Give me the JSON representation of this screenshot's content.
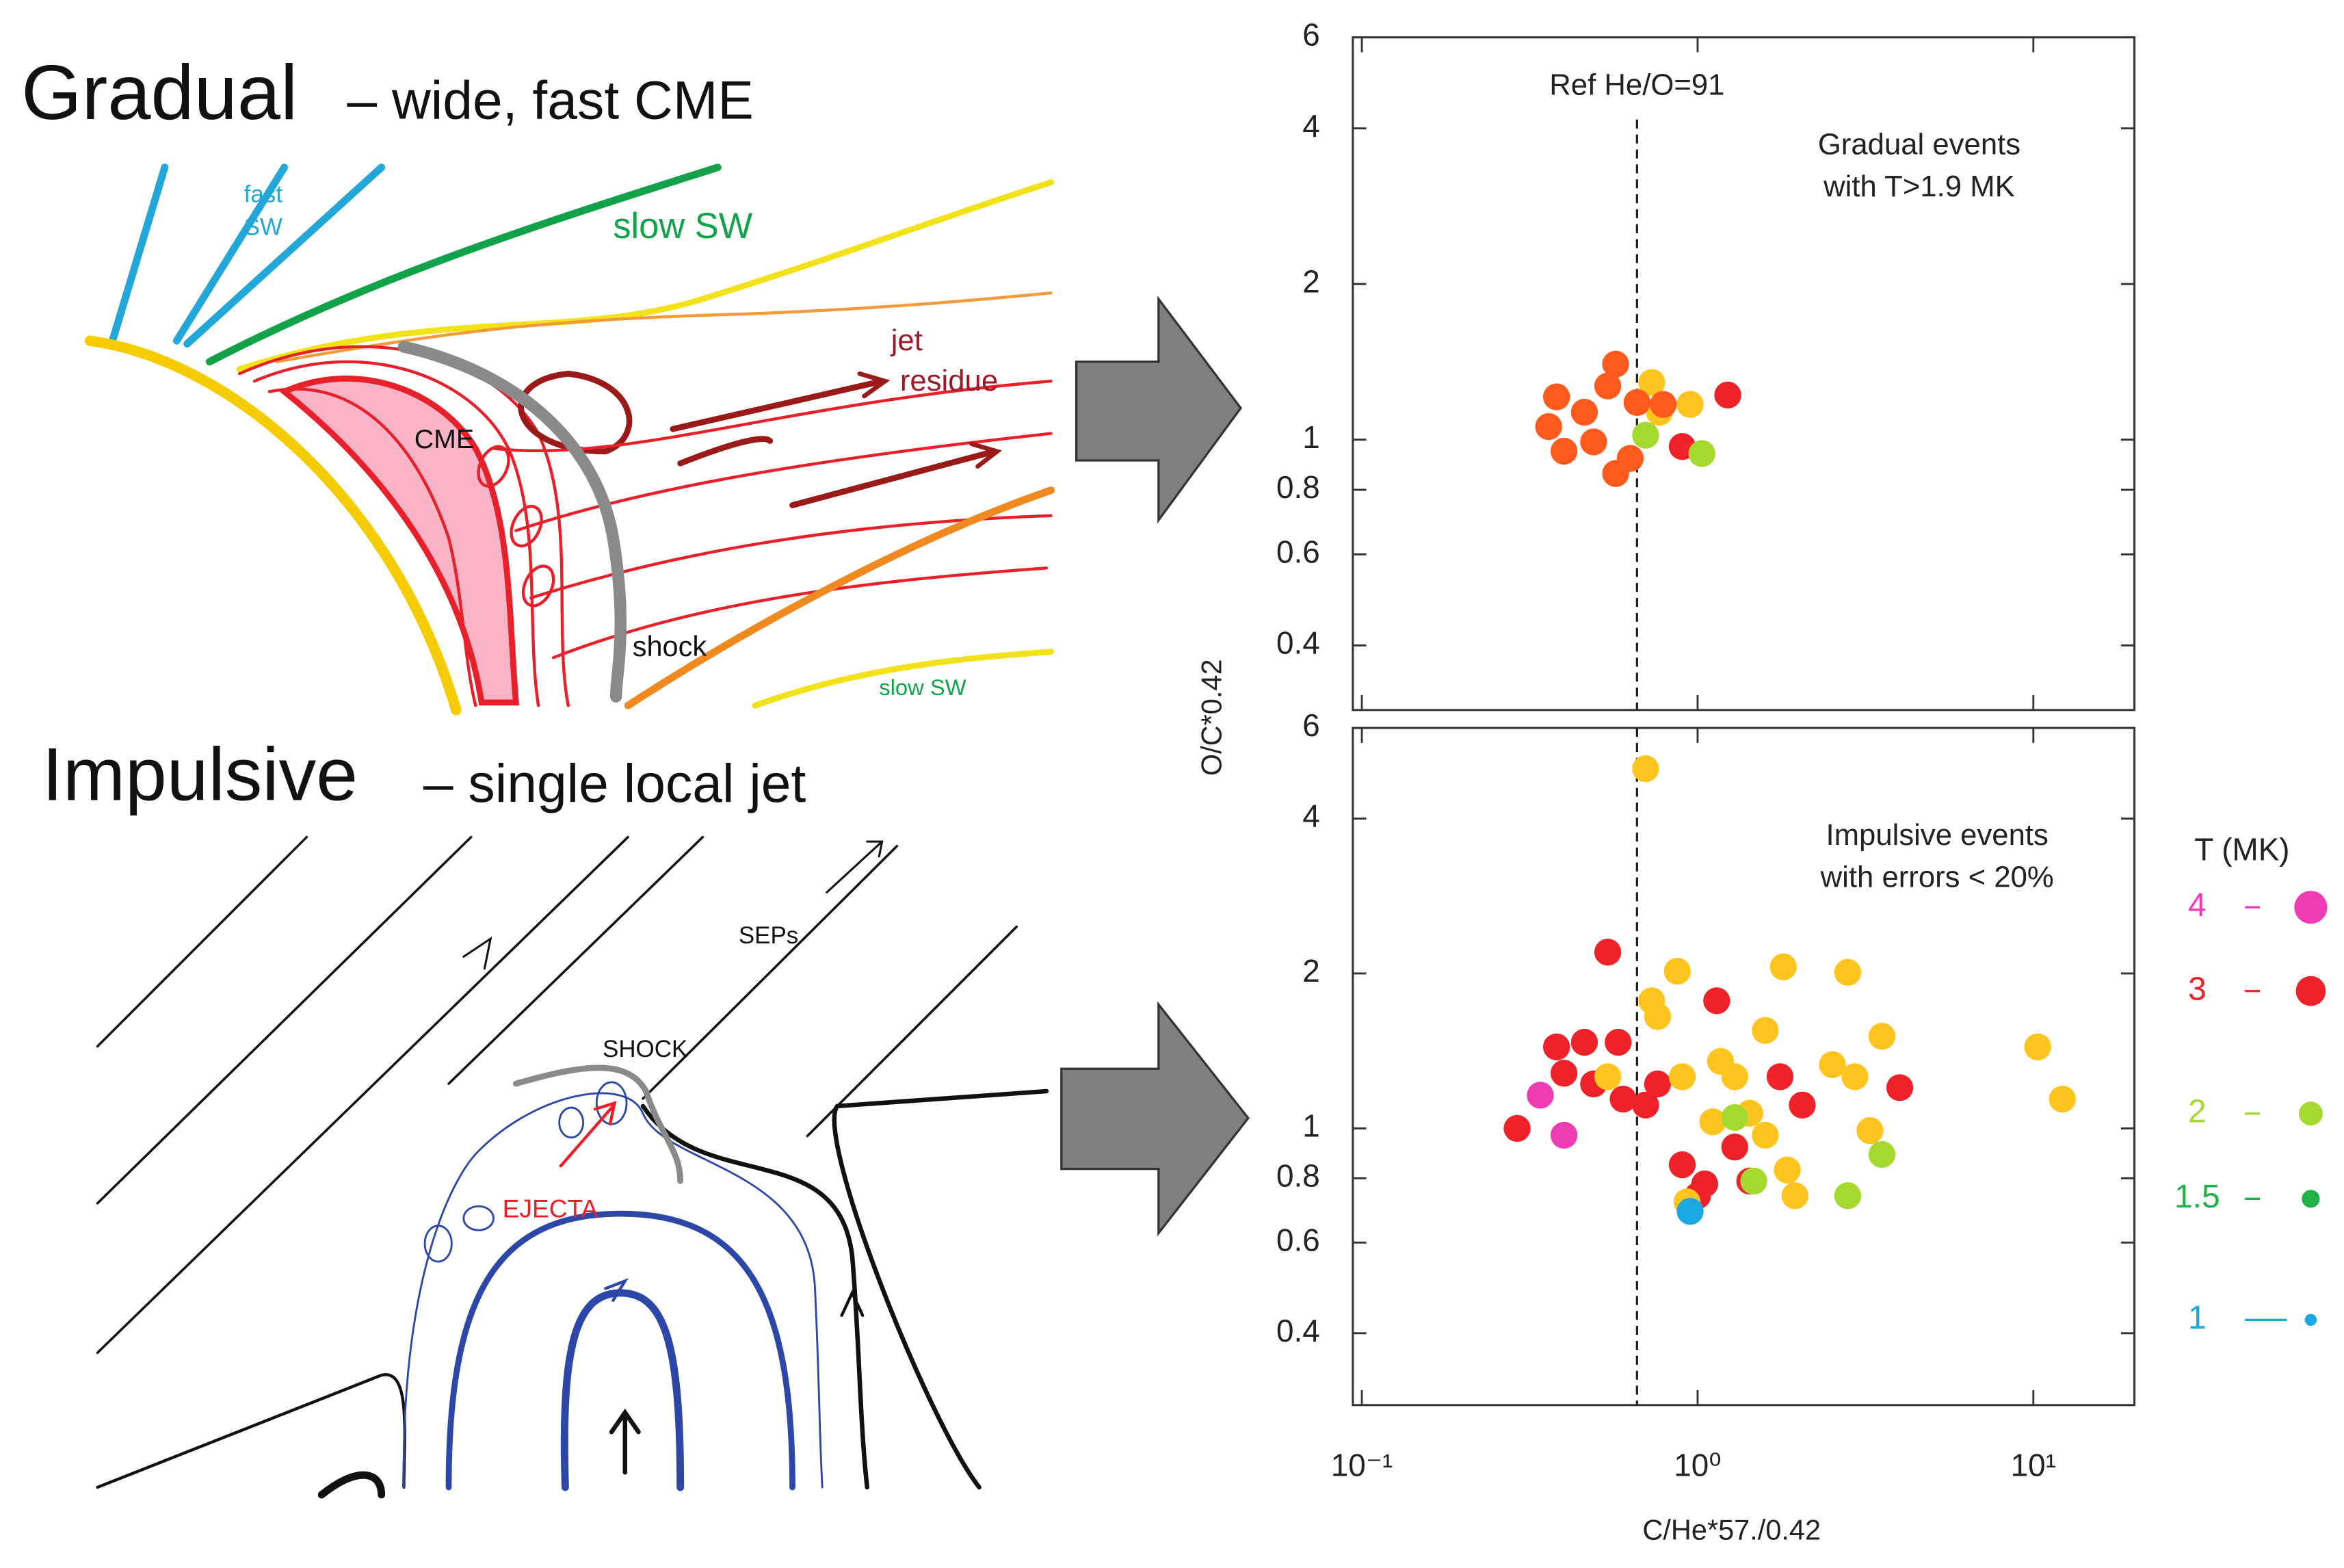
{
  "diagrams": {
    "gradual": {
      "title": "Gradual",
      "subtitle": "– wide, fast CME",
      "fast_sw": [
        "fast",
        "SW"
      ],
      "slow_sw_top": "slow SW",
      "jet_residue": [
        "jet",
        "residue"
      ],
      "cme": "CME",
      "shock": "shock",
      "slow_sw_bottom": "slow SW"
    },
    "impulsive": {
      "title": "Impulsive",
      "subtitle": "– single local jet",
      "seps": "SEPs",
      "shock": "SHOCK",
      "ejecta": "EJECTA"
    }
  },
  "chart_data": [
    {
      "type": "scatter",
      "xscale": "log",
      "yscale": "log",
      "ylabel": "O/C*0.42",
      "annotation": [
        "Gradual events",
        "with T>1.9 MK"
      ],
      "ref_line": {
        "x": 0.66,
        "label": "Ref He/O=91"
      },
      "xlim": [
        0.094,
        20
      ],
      "ylim": [
        0.3,
        6
      ],
      "xticks": [
        0.1,
        1,
        10
      ],
      "yticks": [
        6,
        4,
        2,
        1,
        0.8,
        0.6,
        0.4
      ],
      "x": [
        0.57,
        0.38,
        0.46,
        0.36,
        0.4,
        0.57,
        0.73,
        0.77,
        0.95,
        1.23,
        0.9,
        1.03,
        0.7,
        0.49,
        0.63,
        0.54,
        0.66,
        0.79
      ],
      "values": [
        1.4,
        1.21,
        1.13,
        1.06,
        0.95,
        0.86,
        1.29,
        1.13,
        1.17,
        1.22,
        0.97,
        0.94,
        1.02,
        0.99,
        0.92,
        1.27,
        1.18,
        1.17
      ],
      "colors": [
        "#ff5a1e",
        "#ff5a1e",
        "#ff5a1e",
        "#ff5a1e",
        "#ff5a1e",
        "#ff5a1e",
        "#ffc41e",
        "#ffc41e",
        "#ffc41e",
        "#ee2228",
        "#ee2228",
        "#a6d930",
        "#a6d930",
        "#ff5a1e",
        "#ff5a1e",
        "#ff5a1e",
        "#ff5a1e",
        "#ff5a1e"
      ]
    },
    {
      "type": "scatter",
      "xscale": "log",
      "yscale": "log",
      "xlabel": "C/He*57./0.42",
      "annotation": [
        "Impulsive events",
        "with errors < 20%"
      ],
      "ref_line": {
        "x": 0.66
      },
      "xlim": [
        0.094,
        20
      ],
      "ylim": [
        0.29,
        6
      ],
      "xticks": [
        {
          "value": 0.1,
          "label": "10⁻¹"
        },
        {
          "value": 1,
          "label": "10⁰"
        },
        {
          "value": 10,
          "label": "10¹"
        }
      ],
      "yticks": [
        6,
        4,
        2,
        1,
        0.8,
        0.6,
        0.4
      ],
      "x": [
        0.7,
        0.54,
        0.73,
        0.76,
        0.87,
        1.14,
        1.8,
        2.8,
        3.54,
        10.3,
        12.2,
        0.29,
        0.34,
        0.4,
        0.38,
        0.46,
        0.4,
        0.58,
        0.49,
        0.6,
        0.7,
        0.76,
        0.54,
        0.9,
        1.17,
        1.29,
        1.59,
        1.76,
        2.52,
        2.94,
        4.0,
        1.11,
        1.43,
        2.05,
        1.59,
        3.26,
        3.54,
        1.29,
        0.9,
        1.05,
        1.0,
        1.43,
        1.85,
        1.47,
        1.95,
        2.8,
        0.93,
        0.95,
        1.29
      ],
      "values": [
        5.0,
        2.2,
        1.77,
        1.65,
        2.02,
        1.77,
        2.06,
        2.01,
        1.51,
        1.44,
        1.14,
        1.0,
        1.16,
        0.97,
        1.44,
        1.47,
        1.28,
        1.47,
        1.22,
        1.14,
        1.11,
        1.22,
        1.26,
        1.26,
        1.35,
        1.26,
        1.55,
        1.26,
        1.33,
        1.26,
        1.2,
        1.03,
        1.07,
        1.11,
        0.97,
        0.99,
        0.89,
        0.92,
        0.85,
        0.78,
        0.74,
        0.79,
        0.83,
        0.79,
        0.74,
        0.74,
        0.72,
        0.69,
        1.05
      ],
      "colors": [
        "#ffc41e",
        "#ee2228",
        "#ffc41e",
        "#ffc41e",
        "#ffc41e",
        "#ee2228",
        "#ffc41e",
        "#ffc41e",
        "#ffc41e",
        "#ffc41e",
        "#ffc41e",
        "#ee2228",
        "#f03cb4",
        "#f03cb4",
        "#ee2228",
        "#ee2228",
        "#ee2228",
        "#ee2228",
        "#ee2228",
        "#ee2228",
        "#ee2228",
        "#ee2228",
        "#ffc41e",
        "#ffc41e",
        "#ffc41e",
        "#ffc41e",
        "#ffc41e",
        "#ee2228",
        "#ffc41e",
        "#ffc41e",
        "#ee2228",
        "#ffc41e",
        "#ffc41e",
        "#ee2228",
        "#ffc41e",
        "#ffc41e",
        "#a6d930",
        "#ee2228",
        "#ee2228",
        "#ee2228",
        "#ee2228",
        "#ee2228",
        "#ffc41e",
        "#a6d930",
        "#ffc41e",
        "#a6d930",
        "#ffc41e",
        "#1aa8e0",
        "#a6d930"
      ],
      "legend": {
        "title": "T (MK)",
        "entries": [
          {
            "label": "4",
            "color": "#f03cb4"
          },
          {
            "label": "3",
            "color": "#ee2228"
          },
          {
            "label": "2",
            "color": "#a6d930"
          },
          {
            "label": "1.5",
            "color": "#22b04a"
          },
          {
            "label": "1",
            "color": "#1aa8e0"
          }
        ]
      }
    }
  ]
}
